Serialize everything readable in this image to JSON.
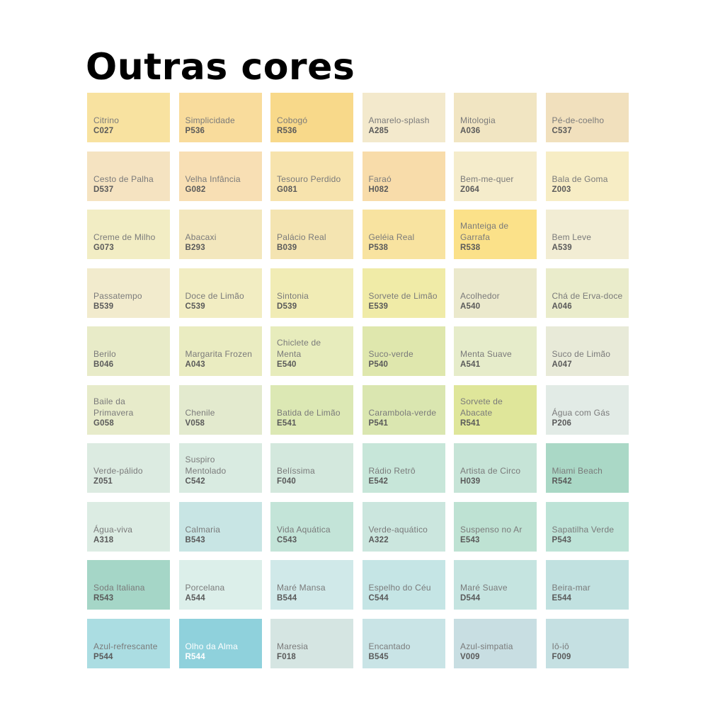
{
  "title": "Outras cores",
  "swatches": [
    {
      "name": "Citrino",
      "code": "C027",
      "color": "#f8e2a0"
    },
    {
      "name": "Simplicidade",
      "code": "P536",
      "color": "#f9dc9c"
    },
    {
      "name": "Cobogó",
      "code": "R536",
      "color": "#f8d98a"
    },
    {
      "name": "Amarelo-splash",
      "code": "A285",
      "color": "#f3e9cc"
    },
    {
      "name": "Mitologia",
      "code": "A036",
      "color": "#f1e5c2"
    },
    {
      "name": "Pé-de-coelho",
      "code": "C537",
      "color": "#f1e0bd"
    },
    {
      "name": "Cesto de Palha",
      "code": "D537",
      "color": "#f5e3c1"
    },
    {
      "name": "Velha Infância",
      "code": "G082",
      "color": "#f8dfb4"
    },
    {
      "name": "Tesouro Perdido",
      "code": "G081",
      "color": "#f7e3ad"
    },
    {
      "name": "Faraó",
      "code": "H082",
      "color": "#f8dcaa"
    },
    {
      "name": "Bem-me-quer",
      "code": "Z064",
      "color": "#f5eccb"
    },
    {
      "name": "Bala de Goma",
      "code": "Z003",
      "color": "#f7edc5"
    },
    {
      "name": "Creme de Milho",
      "code": "G073",
      "color": "#f2edc4"
    },
    {
      "name": "Abacaxi",
      "code": "B293",
      "color": "#f3e7bd"
    },
    {
      "name": "Palácio Real",
      "code": "B039",
      "color": "#f4e4b1"
    },
    {
      "name": "Geléia Real",
      "code": "P538",
      "color": "#f8e3a0"
    },
    {
      "name": "Manteiga de Garrafa",
      "code": "R538",
      "color": "#fbe189"
    },
    {
      "name": "Bem Leve",
      "code": "A539",
      "color": "#f2edd4"
    },
    {
      "name": "Passatempo",
      "code": "B539",
      "color": "#f2ebcd"
    },
    {
      "name": "Doce de Limão",
      "code": "C539",
      "color": "#f2edc2"
    },
    {
      "name": "Sintonia",
      "code": "D539",
      "color": "#f1ecb5"
    },
    {
      "name": "Sorvete de Limão",
      "code": "E539",
      "color": "#f0eba7"
    },
    {
      "name": "Acolhedor",
      "code": "A540",
      "color": "#ebe9cc"
    },
    {
      "name": "Chá de Erva-doce",
      "code": "A046",
      "color": "#eaeccb"
    },
    {
      "name": "Berilo",
      "code": "B046",
      "color": "#e8ebc8"
    },
    {
      "name": "Margarita Frozen",
      "code": "A043",
      "color": "#eaecc1"
    },
    {
      "name": "Chiclete de Menta",
      "code": "E540",
      "color": "#e7ecbc"
    },
    {
      "name": "Suco-verde",
      "code": "P540",
      "color": "#dfe7ad"
    },
    {
      "name": "Menta Suave",
      "code": "A541",
      "color": "#e6ecca"
    },
    {
      "name": "Suco de Limão",
      "code": "A047",
      "color": "#e8ead8"
    },
    {
      "name": "Baile da Primavera",
      "code": "G058",
      "color": "#e7ebca"
    },
    {
      "name": "Chenile",
      "code": "V058",
      "color": "#e3eace"
    },
    {
      "name": "Batida de Limão",
      "code": "E541",
      "color": "#dce8b4"
    },
    {
      "name": "Carambola-verde",
      "code": "P541",
      "color": "#dae6b0"
    },
    {
      "name": "Sorvete de Abacate",
      "code": "R541",
      "color": "#dfe69a"
    },
    {
      "name": "Água com Gás",
      "code": "P206",
      "color": "#e2ebe6"
    },
    {
      "name": "Verde-pálido",
      "code": "Z051",
      "color": "#dcebe1"
    },
    {
      "name": "Suspiro Mentolado",
      "code": "C542",
      "color": "#d9ebe1"
    },
    {
      "name": "Belíssima",
      "code": "F040",
      "color": "#d3e8dd"
    },
    {
      "name": "Rádio Retrô",
      "code": "E542",
      "color": "#c7e6d9"
    },
    {
      "name": "Artista de Circo",
      "code": "H039",
      "color": "#c6e4d7"
    },
    {
      "name": "Miami Beach",
      "code": "R542",
      "color": "#aad8c6"
    },
    {
      "name": "Água-viva",
      "code": "A318",
      "color": "#dcece3"
    },
    {
      "name": "Calmaria",
      "code": "B543",
      "color": "#c8e5e4"
    },
    {
      "name": "Vida Aquática",
      "code": "C543",
      "color": "#c3e4d8"
    },
    {
      "name": "Verde-aquático",
      "code": "A322",
      "color": "#cbe6de"
    },
    {
      "name": "Suspenso no Ar",
      "code": "E543",
      "color": "#bee2d3"
    },
    {
      "name": "Sapatilha Verde",
      "code": "P543",
      "color": "#bde3d7"
    },
    {
      "name": "Soda Italiana",
      "code": "R543",
      "color": "#a5d6c7"
    },
    {
      "name": "Porcelana",
      "code": "A544",
      "color": "#dcefea"
    },
    {
      "name": "Maré Mansa",
      "code": "B544",
      "color": "#d0e9e9"
    },
    {
      "name": "Espelho do Céu",
      "code": "C544",
      "color": "#c5e5e5"
    },
    {
      "name": "Maré Suave",
      "code": "D544",
      "color": "#c5e4e0"
    },
    {
      "name": "Beira-mar",
      "code": "E544",
      "color": "#c1e1e0"
    },
    {
      "name": "Azul-refrescante",
      "code": "P544",
      "color": "#abdde2"
    },
    {
      "name": "Olho da Alma",
      "code": "R544",
      "color": "#8fd1dc",
      "light_text": true
    },
    {
      "name": "Maresia",
      "code": "F018",
      "color": "#d5e5e2"
    },
    {
      "name": "Encantado",
      "code": "B545",
      "color": "#c9e4e6"
    },
    {
      "name": "Azul-simpatia",
      "code": "V009",
      "color": "#c8dee2"
    },
    {
      "name": "Iô-iô",
      "code": "F009",
      "color": "#c5e0e2"
    }
  ]
}
